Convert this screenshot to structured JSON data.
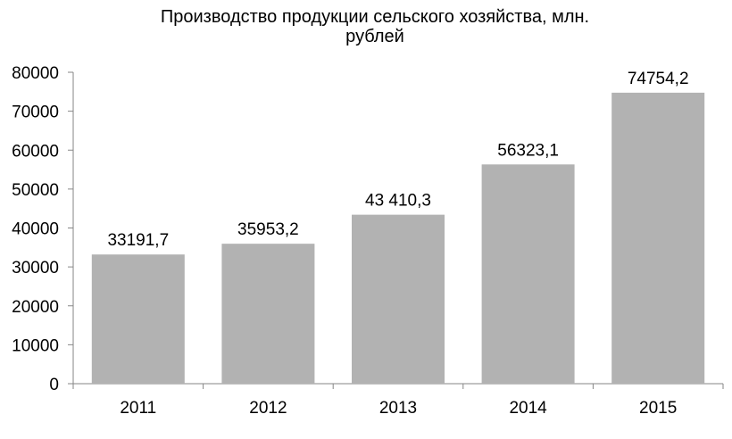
{
  "chart_data": {
    "type": "bar",
    "title_lines": [
      "Производство продукции сельского хозяйства, млн.",
      "рублей"
    ],
    "categories": [
      "2011",
      "2012",
      "2013",
      "2014",
      "2015"
    ],
    "values": [
      33191.7,
      35953.2,
      43410.3,
      56323.1,
      74754.2
    ],
    "data_labels": [
      "33191,7",
      "35953,2",
      "43 410,3",
      "56323,1",
      "74754,2"
    ],
    "y_ticks": [
      "0",
      "10000",
      "20000",
      "30000",
      "40000",
      "50000",
      "60000",
      "70000",
      "80000"
    ],
    "ylim": [
      0,
      80000
    ],
    "xlabel": "",
    "ylabel": "",
    "grid": false,
    "legend": "none",
    "bar_color": "#b2b2b2",
    "axis_color": "#868686"
  }
}
